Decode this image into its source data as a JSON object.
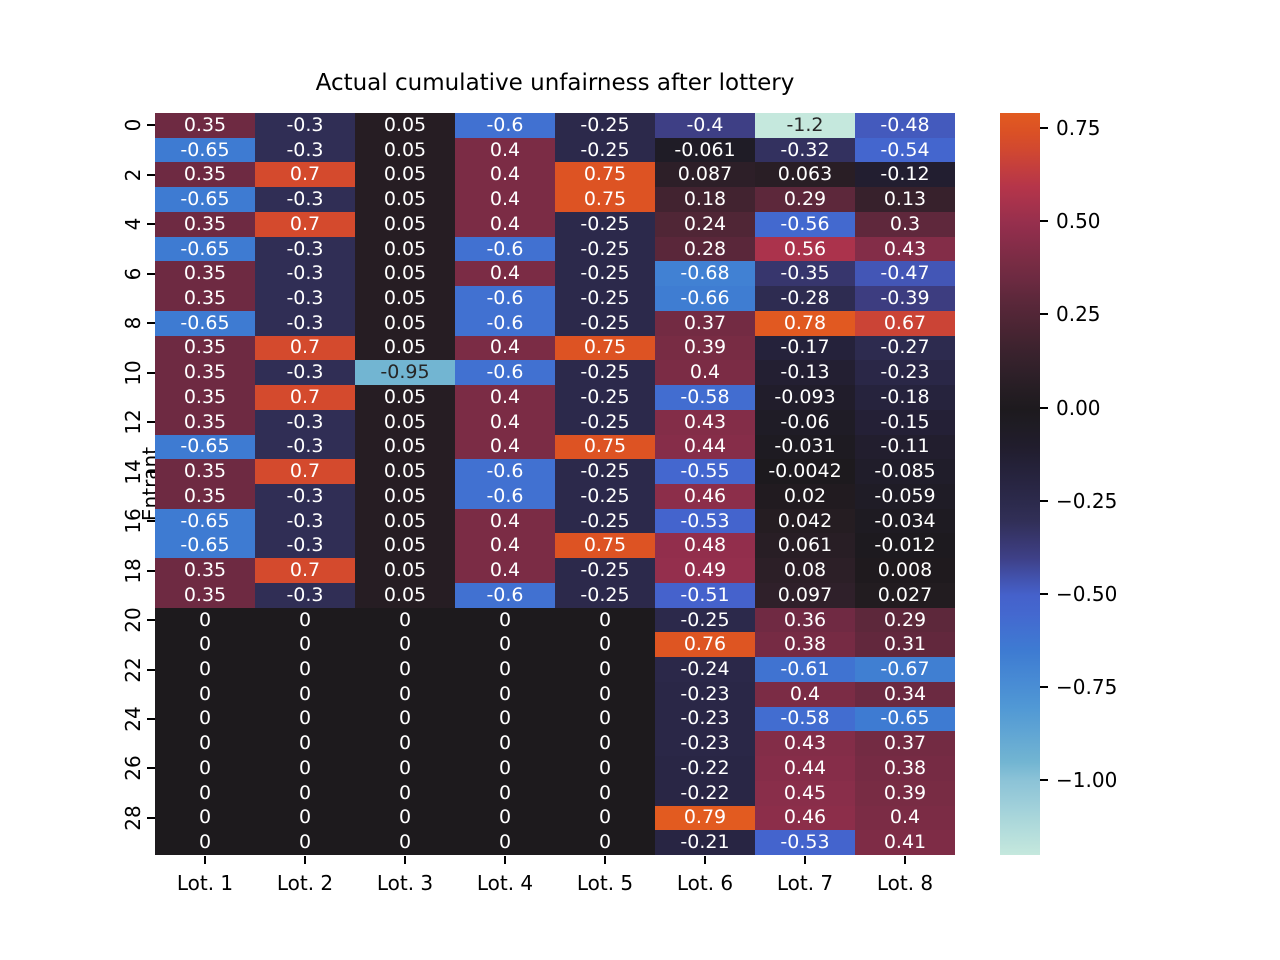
{
  "figure": {
    "background": "#ffffff"
  },
  "chart_data": {
    "type": "heatmap",
    "title": "Actual cumulative unfairness after lottery",
    "xlabel": "",
    "ylabel": "Entrant",
    "columns": [
      "Lot. 1",
      "Lot. 2",
      "Lot. 3",
      "Lot. 4",
      "Lot. 5",
      "Lot. 6",
      "Lot. 7",
      "Lot. 8"
    ],
    "n_rows": 30,
    "y_tick_rows": [
      0,
      2,
      4,
      6,
      8,
      10,
      12,
      14,
      16,
      18,
      20,
      22,
      24,
      26,
      28
    ],
    "y_tick_labels": [
      "0",
      "2",
      "4",
      "6",
      "8",
      "10",
      "12",
      "14",
      "16",
      "18",
      "20",
      "22",
      "24",
      "26",
      "28"
    ],
    "cells": [
      [
        "0.35",
        "-0.3",
        "0.05",
        "-0.6",
        "-0.25",
        "-0.4",
        "-1.2",
        "-0.48"
      ],
      [
        "-0.65",
        "-0.3",
        "0.05",
        "0.4",
        "-0.25",
        "-0.061",
        "-0.32",
        "-0.54"
      ],
      [
        "0.35",
        "0.7",
        "0.05",
        "0.4",
        "0.75",
        "0.087",
        "0.063",
        "-0.12"
      ],
      [
        "-0.65",
        "-0.3",
        "0.05",
        "0.4",
        "0.75",
        "0.18",
        "0.29",
        "0.13"
      ],
      [
        "0.35",
        "0.7",
        "0.05",
        "0.4",
        "-0.25",
        "0.24",
        "-0.56",
        "0.3"
      ],
      [
        "-0.65",
        "-0.3",
        "0.05",
        "-0.6",
        "-0.25",
        "0.28",
        "0.56",
        "0.43"
      ],
      [
        "0.35",
        "-0.3",
        "0.05",
        "0.4",
        "-0.25",
        "-0.68",
        "-0.35",
        "-0.47"
      ],
      [
        "0.35",
        "-0.3",
        "0.05",
        "-0.6",
        "-0.25",
        "-0.66",
        "-0.28",
        "-0.39"
      ],
      [
        "-0.65",
        "-0.3",
        "0.05",
        "-0.6",
        "-0.25",
        "0.37",
        "0.78",
        "0.67"
      ],
      [
        "0.35",
        "0.7",
        "0.05",
        "0.4",
        "0.75",
        "0.39",
        "-0.17",
        "-0.27"
      ],
      [
        "0.35",
        "-0.3",
        "-0.95",
        "-0.6",
        "-0.25",
        "0.4",
        "-0.13",
        "-0.23"
      ],
      [
        "0.35",
        "0.7",
        "0.05",
        "0.4",
        "-0.25",
        "-0.58",
        "-0.093",
        "-0.18"
      ],
      [
        "0.35",
        "-0.3",
        "0.05",
        "0.4",
        "-0.25",
        "0.43",
        "-0.06",
        "-0.15"
      ],
      [
        "-0.65",
        "-0.3",
        "0.05",
        "0.4",
        "0.75",
        "0.44",
        "-0.031",
        "-0.11"
      ],
      [
        "0.35",
        "0.7",
        "0.05",
        "-0.6",
        "-0.25",
        "-0.55",
        "-0.0042",
        "-0.085"
      ],
      [
        "0.35",
        "-0.3",
        "0.05",
        "-0.6",
        "-0.25",
        "0.46",
        "0.02",
        "-0.059"
      ],
      [
        "-0.65",
        "-0.3",
        "0.05",
        "0.4",
        "-0.25",
        "-0.53",
        "0.042",
        "-0.034"
      ],
      [
        "-0.65",
        "-0.3",
        "0.05",
        "0.4",
        "0.75",
        "0.48",
        "0.061",
        "-0.012"
      ],
      [
        "0.35",
        "0.7",
        "0.05",
        "0.4",
        "-0.25",
        "0.49",
        "0.08",
        "0.008"
      ],
      [
        "0.35",
        "-0.3",
        "0.05",
        "-0.6",
        "-0.25",
        "-0.51",
        "0.097",
        "0.027"
      ],
      [
        "0",
        "0",
        "0",
        "0",
        "0",
        "-0.25",
        "0.36",
        "0.29"
      ],
      [
        "0",
        "0",
        "0",
        "0",
        "0",
        "0.76",
        "0.38",
        "0.31"
      ],
      [
        "0",
        "0",
        "0",
        "0",
        "0",
        "-0.24",
        "-0.61",
        "-0.67"
      ],
      [
        "0",
        "0",
        "0",
        "0",
        "0",
        "-0.23",
        "0.4",
        "0.34"
      ],
      [
        "0",
        "0",
        "0",
        "0",
        "0",
        "-0.23",
        "-0.58",
        "-0.65"
      ],
      [
        "0",
        "0",
        "0",
        "0",
        "0",
        "-0.23",
        "0.43",
        "0.37"
      ],
      [
        "0",
        "0",
        "0",
        "0",
        "0",
        "-0.22",
        "0.44",
        "0.38"
      ],
      [
        "0",
        "0",
        "0",
        "0",
        "0",
        "-0.22",
        "0.45",
        "0.39"
      ],
      [
        "0",
        "0",
        "0",
        "0",
        "0",
        "0.79",
        "0.46",
        "0.4"
      ],
      [
        "0",
        "0",
        "0",
        "0",
        "0",
        "-0.21",
        "-0.53",
        "0.41"
      ]
    ],
    "color_scale": {
      "vmin": -1.2,
      "vmax": 0.79,
      "center": 0,
      "annotation_text_light": "#ffffff",
      "annotation_text_dark": "#262626",
      "colorbar_ticks": [
        {
          "label": "0.75",
          "value": 0.75
        },
        {
          "label": "0.50",
          "value": 0.5
        },
        {
          "label": "0.25",
          "value": 0.25
        },
        {
          "label": "0.00",
          "value": 0.0
        },
        {
          "label": "−0.25",
          "value": -0.25
        },
        {
          "label": "−0.50",
          "value": -0.5
        },
        {
          "label": "−0.75",
          "value": -0.75
        },
        {
          "label": "−1.00",
          "value": -1.0
        }
      ],
      "colormap_name": "icefire",
      "colormap_stops": [
        [
          0.0,
          "#c5e8dd"
        ],
        [
          0.083,
          "#8cc3d7"
        ],
        [
          0.104,
          "#72b5d2"
        ],
        [
          0.167,
          "#4f97d5"
        ],
        [
          0.229,
          "#3e7bd2"
        ],
        [
          0.271,
          "#4467cf"
        ],
        [
          0.292,
          "#4560cb"
        ],
        [
          0.333,
          "#3e3f85"
        ],
        [
          0.375,
          "#302e55"
        ],
        [
          0.417,
          "#272441"
        ],
        [
          0.458,
          "#211d2c"
        ],
        [
          0.5,
          "#1d1a1d"
        ],
        [
          0.542,
          "#30202a"
        ],
        [
          0.583,
          "#462432"
        ],
        [
          0.625,
          "#5f283c"
        ],
        [
          0.646,
          "#6e2a42"
        ],
        [
          0.667,
          "#7b2c45"
        ],
        [
          0.708,
          "#972f4e"
        ],
        [
          0.75,
          "#b8364a"
        ],
        [
          0.792,
          "#d44a2d"
        ],
        [
          0.813,
          "#dd5323"
        ],
        [
          0.833,
          "#e35d1f"
        ],
        [
          1.0,
          "#f0a13f"
        ]
      ]
    }
  }
}
